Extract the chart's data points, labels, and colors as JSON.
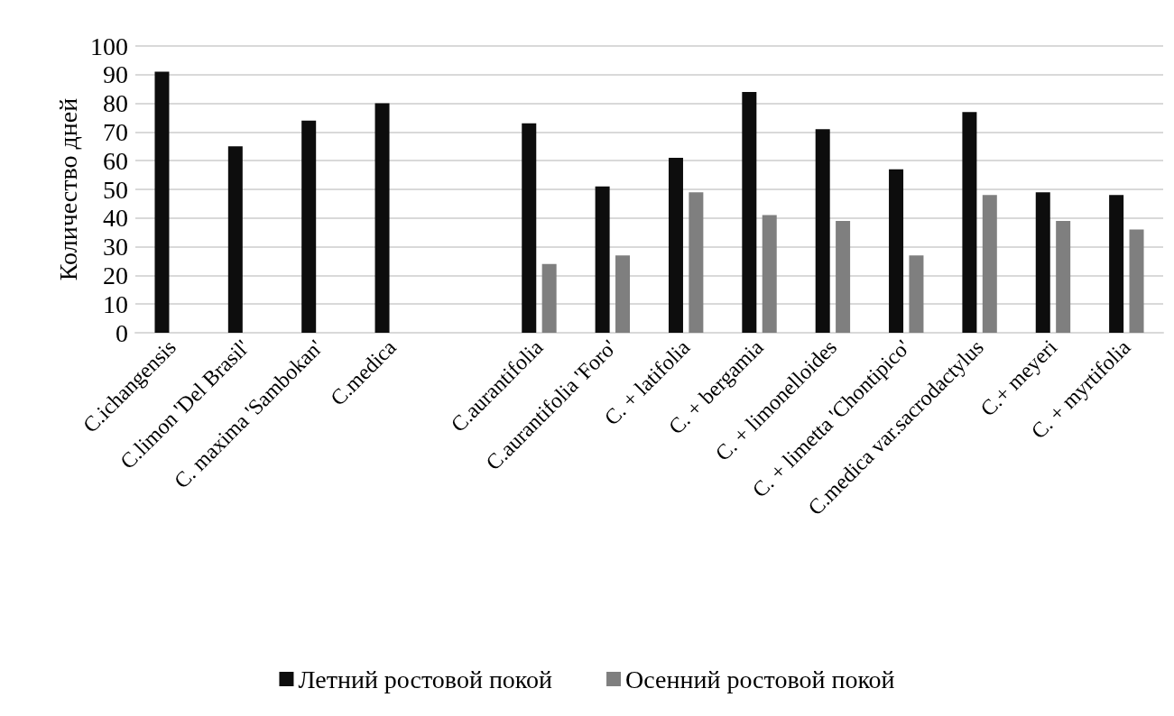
{
  "chart_data": {
    "type": "bar",
    "ylabel": "Количество дней",
    "categories": [
      "C.ichangensis",
      "C.limon 'Del Brasil'",
      "C. maxima 'Sambokan'",
      "C.medica",
      null,
      "C.aurantifolia",
      "C.aurantifolia 'Foro'",
      "C. + latifolia",
      "C. + bergamia",
      "C. + limonelloides",
      "C. + limetta 'Chontipico'",
      "C.medica var.sacrodactylus",
      "C.+ meyeri",
      "C. + myrtifolia"
    ],
    "series": [
      {
        "name": "Летний ростовой покой",
        "color": "#0d0d0d",
        "values": [
          91,
          65,
          74,
          80,
          null,
          73,
          51,
          61,
          84,
          71,
          57,
          77,
          49,
          48
        ]
      },
      {
        "name": "Осенний ростовой покой",
        "color": "#7f7f7f",
        "values": [
          null,
          null,
          null,
          null,
          null,
          24,
          27,
          49,
          41,
          39,
          27,
          48,
          39,
          36
        ]
      }
    ],
    "ylim": [
      0,
      100
    ],
    "yticks": [
      0,
      10,
      20,
      30,
      40,
      50,
      60,
      70,
      80,
      90,
      100
    ],
    "grid": "y",
    "legend": "bottom"
  }
}
